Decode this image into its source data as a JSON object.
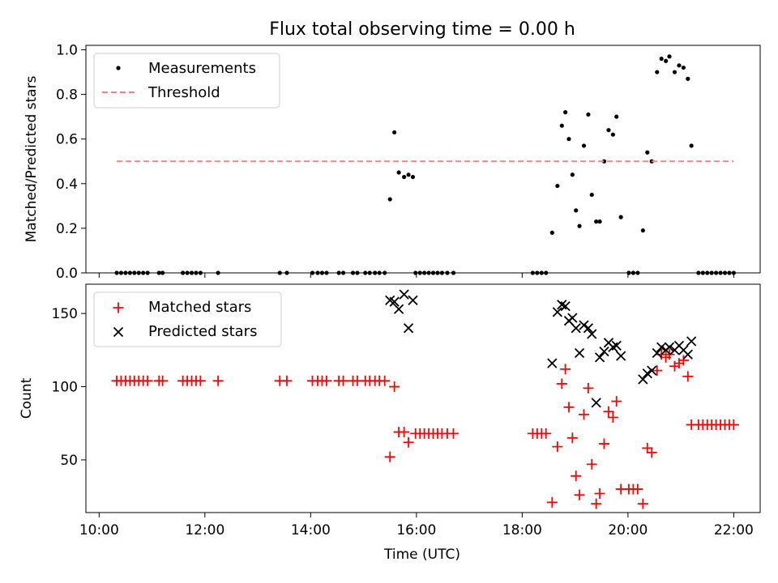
{
  "title": "Flux total observing time = 0.00 h",
  "chart_data": [
    {
      "type": "scatter",
      "ylabel": "Matched/Predicted stars",
      "ylim": [
        0,
        1.02
      ],
      "yticks": [
        0.0,
        0.2,
        0.4,
        0.6,
        0.8,
        1.0
      ],
      "ytick_labels": [
        "0.0",
        "0.2",
        "0.4",
        "0.6",
        "0.8",
        "1.0"
      ],
      "xlim": [
        "09:45",
        "22:30"
      ],
      "legend": {
        "placement": "upper-left",
        "entries": [
          "Measurements",
          "Threshold"
        ]
      },
      "series": [
        {
          "name": "Measurements",
          "color": "#000000",
          "marker": "dot",
          "points": [
            [
              "10:20",
              0
            ],
            [
              "10:25",
              0
            ],
            [
              "10:30",
              0
            ],
            [
              "10:35",
              0
            ],
            [
              "10:40",
              0
            ],
            [
              "10:45",
              0
            ],
            [
              "10:50",
              0
            ],
            [
              "10:55",
              0
            ],
            [
              "11:08",
              0
            ],
            [
              "11:12",
              0
            ],
            [
              "11:35",
              0
            ],
            [
              "11:40",
              0
            ],
            [
              "11:45",
              0
            ],
            [
              "11:50",
              0
            ],
            [
              "11:55",
              0
            ],
            [
              "12:15",
              0
            ],
            [
              "13:25",
              0
            ],
            [
              "13:33",
              0
            ],
            [
              "14:02",
              0
            ],
            [
              "14:08",
              0
            ],
            [
              "14:13",
              0
            ],
            [
              "14:18",
              0
            ],
            [
              "14:32",
              0
            ],
            [
              "14:37",
              0
            ],
            [
              "14:48",
              0
            ],
            [
              "14:53",
              0
            ],
            [
              "15:02",
              0
            ],
            [
              "15:07",
              0
            ],
            [
              "15:13",
              0
            ],
            [
              "15:18",
              0
            ],
            [
              "15:24",
              0
            ],
            [
              "15:30",
              0.33
            ],
            [
              "15:35",
              0.63
            ],
            [
              "15:40",
              0.45
            ],
            [
              "15:46",
              0.43
            ],
            [
              "15:51",
              0.44
            ],
            [
              "15:56",
              0.43
            ],
            [
              "15:59",
              0
            ],
            [
              "16:04",
              0
            ],
            [
              "16:09",
              0
            ],
            [
              "16:14",
              0
            ],
            [
              "16:19",
              0
            ],
            [
              "16:24",
              0
            ],
            [
              "16:29",
              0
            ],
            [
              "16:35",
              0
            ],
            [
              "16:42",
              0
            ],
            [
              "18:12",
              0
            ],
            [
              "18:17",
              0
            ],
            [
              "18:22",
              0
            ],
            [
              "18:27",
              0
            ],
            [
              "18:34",
              0.18
            ],
            [
              "18:40",
              0.39
            ],
            [
              "18:45",
              0.66
            ],
            [
              "18:49",
              0.72
            ],
            [
              "18:53",
              0.6
            ],
            [
              "18:57",
              0.44
            ],
            [
              "19:01",
              0.28
            ],
            [
              "19:05",
              0.21
            ],
            [
              "19:10",
              0.57
            ],
            [
              "19:15",
              0.71
            ],
            [
              "19:19",
              0.35
            ],
            [
              "19:24",
              0.23
            ],
            [
              "19:28",
              0.23
            ],
            [
              "19:33",
              0.5
            ],
            [
              "19:38",
              0.64
            ],
            [
              "19:43",
              0.62
            ],
            [
              "19:47",
              0.7
            ],
            [
              "19:52",
              0.25
            ],
            [
              "20:01",
              0
            ],
            [
              "20:06",
              0
            ],
            [
              "20:11",
              0
            ],
            [
              "20:17",
              0.19
            ],
            [
              "20:22",
              0.54
            ],
            [
              "20:27",
              0.5
            ],
            [
              "20:33",
              0.9
            ],
            [
              "20:38",
              0.96
            ],
            [
              "20:43",
              0.95
            ],
            [
              "20:47",
              0.97
            ],
            [
              "20:53",
              0.9
            ],
            [
              "20:58",
              0.93
            ],
            [
              "21:03",
              0.92
            ],
            [
              "21:08",
              0.87
            ],
            [
              "21:12",
              0.57
            ],
            [
              "21:20",
              0
            ],
            [
              "21:25",
              0
            ],
            [
              "21:30",
              0
            ],
            [
              "21:35",
              0
            ],
            [
              "21:40",
              0
            ],
            [
              "21:45",
              0
            ],
            [
              "21:50",
              0
            ],
            [
              "21:55",
              0
            ],
            [
              "22:00",
              0
            ]
          ]
        },
        {
          "name": "Threshold",
          "color": "#ff7f7f",
          "line": "dashed",
          "points": [
            [
              "10:20",
              0.5
            ],
            [
              "22:00",
              0.5
            ]
          ]
        }
      ]
    },
    {
      "type": "scatter",
      "ylabel": "Count",
      "xlabel": "Time (UTC)",
      "ylim": [
        14,
        170
      ],
      "yticks": [
        50,
        100,
        150
      ],
      "ytick_labels": [
        "50",
        "100",
        "150"
      ],
      "xlim": [
        "09:45",
        "22:30"
      ],
      "xticks": [
        "10:00",
        "12:00",
        "14:00",
        "16:00",
        "18:00",
        "20:00",
        "22:00"
      ],
      "legend": {
        "placement": "upper-left",
        "entries": [
          "Matched stars",
          "Predicted stars"
        ]
      },
      "series": [
        {
          "name": "Matched stars",
          "color": "#ff0000",
          "marker": "plus",
          "points": [
            [
              "10:20",
              104
            ],
            [
              "10:25",
              104
            ],
            [
              "10:30",
              104
            ],
            [
              "10:35",
              104
            ],
            [
              "10:40",
              104
            ],
            [
              "10:45",
              104
            ],
            [
              "10:50",
              104
            ],
            [
              "10:55",
              104
            ],
            [
              "11:08",
              104
            ],
            [
              "11:12",
              104
            ],
            [
              "11:35",
              104
            ],
            [
              "11:40",
              104
            ],
            [
              "11:45",
              104
            ],
            [
              "11:50",
              104
            ],
            [
              "11:55",
              104
            ],
            [
              "12:15",
              104
            ],
            [
              "13:25",
              104
            ],
            [
              "13:33",
              104
            ],
            [
              "14:02",
              104
            ],
            [
              "14:08",
              104
            ],
            [
              "14:13",
              104
            ],
            [
              "14:18",
              104
            ],
            [
              "14:32",
              104
            ],
            [
              "14:37",
              104
            ],
            [
              "14:48",
              104
            ],
            [
              "14:53",
              104
            ],
            [
              "15:02",
              104
            ],
            [
              "15:07",
              104
            ],
            [
              "15:13",
              104
            ],
            [
              "15:18",
              104
            ],
            [
              "15:24",
              104
            ],
            [
              "15:30",
              52
            ],
            [
              "15:35",
              100
            ],
            [
              "15:40",
              69
            ],
            [
              "15:46",
              69
            ],
            [
              "15:51",
              62
            ],
            [
              "15:59",
              68
            ],
            [
              "16:04",
              68
            ],
            [
              "16:09",
              68
            ],
            [
              "16:14",
              68
            ],
            [
              "16:19",
              68
            ],
            [
              "16:24",
              68
            ],
            [
              "16:29",
              68
            ],
            [
              "16:35",
              68
            ],
            [
              "16:42",
              68
            ],
            [
              "18:12",
              68
            ],
            [
              "18:17",
              68
            ],
            [
              "18:22",
              68
            ],
            [
              "18:27",
              68
            ],
            [
              "18:34",
              21
            ],
            [
              "18:40",
              59
            ],
            [
              "18:45",
              102
            ],
            [
              "18:49",
              112
            ],
            [
              "18:53",
              86
            ],
            [
              "18:57",
              65
            ],
            [
              "19:01",
              39
            ],
            [
              "19:05",
              26
            ],
            [
              "19:10",
              81
            ],
            [
              "19:15",
              99
            ],
            [
              "19:19",
              47
            ],
            [
              "19:24",
              20
            ],
            [
              "19:28",
              27
            ],
            [
              "19:33",
              61
            ],
            [
              "19:38",
              83
            ],
            [
              "19:43",
              79
            ],
            [
              "19:47",
              90
            ],
            [
              "19:52",
              30
            ],
            [
              "20:01",
              30
            ],
            [
              "20:06",
              30
            ],
            [
              "20:11",
              30
            ],
            [
              "20:17",
              20
            ],
            [
              "20:22",
              58
            ],
            [
              "20:27",
              55
            ],
            [
              "20:33",
              111
            ],
            [
              "20:38",
              122
            ],
            [
              "20:43",
              120
            ],
            [
              "20:47",
              122
            ],
            [
              "20:53",
              114
            ],
            [
              "20:58",
              116
            ],
            [
              "21:03",
              118
            ],
            [
              "21:08",
              107
            ],
            [
              "21:12",
              74
            ],
            [
              "21:20",
              74
            ],
            [
              "21:25",
              74
            ],
            [
              "21:30",
              74
            ],
            [
              "21:35",
              74
            ],
            [
              "21:40",
              74
            ],
            [
              "21:45",
              74
            ],
            [
              "21:50",
              74
            ],
            [
              "21:55",
              74
            ],
            [
              "22:00",
              74
            ]
          ]
        },
        {
          "name": "Predicted stars",
          "color": "#000000",
          "marker": "x",
          "points": [
            [
              "15:30",
              159
            ],
            [
              "15:35",
              158
            ],
            [
              "15:40",
              153
            ],
            [
              "15:46",
              163
            ],
            [
              "15:51",
              140
            ],
            [
              "15:56",
              159
            ],
            [
              "18:34",
              116
            ],
            [
              "18:40",
              151
            ],
            [
              "18:45",
              156
            ],
            [
              "18:49",
              155
            ],
            [
              "18:53",
              145
            ],
            [
              "18:57",
              147
            ],
            [
              "19:01",
              140
            ],
            [
              "19:05",
              123
            ],
            [
              "19:10",
              142
            ],
            [
              "19:15",
              140
            ],
            [
              "19:19",
              136
            ],
            [
              "19:24",
              89
            ],
            [
              "19:28",
              120
            ],
            [
              "19:33",
              124
            ],
            [
              "19:38",
              130
            ],
            [
              "19:43",
              127
            ],
            [
              "19:47",
              128
            ],
            [
              "19:52",
              121
            ],
            [
              "20:17",
              105
            ],
            [
              "20:22",
              109
            ],
            [
              "20:27",
              111
            ],
            [
              "20:33",
              123
            ],
            [
              "20:38",
              127
            ],
            [
              "20:43",
              125
            ],
            [
              "20:47",
              127
            ],
            [
              "20:53",
              125
            ],
            [
              "20:58",
              128
            ],
            [
              "21:03",
              125
            ],
            [
              "21:08",
              122
            ],
            [
              "21:12",
              131
            ]
          ]
        }
      ]
    }
  ]
}
